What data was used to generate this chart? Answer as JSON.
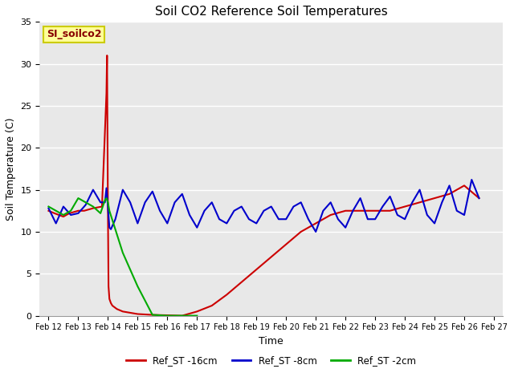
{
  "title": "Soil CO2 Reference Soil Temperatures",
  "xlabel": "Time",
  "ylabel": "Soil Temperature (C)",
  "ylim": [
    0,
    35
  ],
  "fig_bg_color": "#ffffff",
  "plot_bg_color": "#e8e8e8",
  "label_box_text": "SI_soilco2",
  "label_box_color": "#ffff99",
  "label_box_border": "#cccc00",
  "label_text_color": "#880000",
  "grid_color": "#ffffff",
  "legend_labels": [
    "Ref_ST -16cm",
    "Ref_ST -8cm",
    "Ref_ST -2cm"
  ],
  "legend_colors": [
    "#cc0000",
    "#0000cc",
    "#00aa00"
  ],
  "xtick_labels": [
    "Feb 12",
    "Feb 13",
    "Feb 14",
    "Feb 15",
    "Feb 16",
    "Feb 17",
    "Feb 18",
    "Feb 19",
    "Feb 20",
    "Feb 21",
    "Feb 22",
    "Feb 23",
    "Feb 24",
    "Feb 25",
    "Feb 26",
    "Feb 27"
  ],
  "xtick_positions": [
    0,
    1,
    2,
    3,
    4,
    5,
    6,
    7,
    8,
    9,
    10,
    11,
    12,
    13,
    14,
    15
  ],
  "ytick_positions": [
    0,
    5,
    10,
    15,
    20,
    25,
    30,
    35
  ],
  "series_red_x": [
    0,
    0.2,
    0.5,
    0.7,
    1.0,
    1.2,
    1.5,
    1.8,
    1.95,
    1.97,
    2.0,
    2.02,
    2.05,
    2.1,
    2.15,
    2.3,
    2.5,
    3.0,
    3.5,
    4.0,
    4.5,
    5.0,
    5.5,
    6.0,
    6.5,
    7.0,
    7.5,
    8.0,
    8.5,
    9.0,
    9.5,
    10.0,
    10.5,
    11.0,
    11.5,
    12.0,
    12.5,
    13.0,
    13.5,
    14.0,
    14.5
  ],
  "series_red_y": [
    12.5,
    12.2,
    11.8,
    12.2,
    12.5,
    12.5,
    12.8,
    13.0,
    26.5,
    31.0,
    12.5,
    3.5,
    2.0,
    1.5,
    1.2,
    0.8,
    0.5,
    0.2,
    0.1,
    0.05,
    0.0,
    0.5,
    1.2,
    2.5,
    4.0,
    5.5,
    7.0,
    8.5,
    10.0,
    11.0,
    12.0,
    12.5,
    12.5,
    12.5,
    12.5,
    13.0,
    13.5,
    14.0,
    14.5,
    15.5,
    14.0
  ],
  "series_blue_x": [
    0,
    0.25,
    0.5,
    0.75,
    1.0,
    1.25,
    1.5,
    1.75,
    1.9,
    1.95,
    2.0,
    2.05,
    2.1,
    2.25,
    2.5,
    2.75,
    3.0,
    3.25,
    3.5,
    3.75,
    4.0,
    4.25,
    4.5,
    4.75,
    5.0,
    5.25,
    5.5,
    5.75,
    6.0,
    6.25,
    6.5,
    6.75,
    7.0,
    7.25,
    7.5,
    7.75,
    8.0,
    8.25,
    8.5,
    8.75,
    9.0,
    9.25,
    9.5,
    9.75,
    10.0,
    10.25,
    10.5,
    10.75,
    11.0,
    11.25,
    11.5,
    11.75,
    12.0,
    12.25,
    12.5,
    12.75,
    13.0,
    13.25,
    13.5,
    13.75,
    14.0,
    14.25,
    14.5
  ],
  "series_blue_y": [
    12.8,
    11.0,
    13.0,
    12.0,
    12.2,
    13.2,
    15.0,
    13.5,
    13.5,
    15.2,
    13.0,
    10.5,
    10.3,
    11.5,
    15.0,
    13.5,
    11.0,
    13.5,
    14.8,
    12.5,
    11.0,
    13.5,
    14.5,
    12.0,
    10.5,
    12.5,
    13.5,
    11.5,
    11.0,
    12.5,
    13.0,
    11.5,
    11.0,
    12.5,
    13.0,
    11.5,
    11.5,
    13.0,
    13.5,
    11.5,
    10.0,
    12.5,
    13.5,
    11.5,
    10.5,
    12.5,
    14.0,
    11.5,
    11.5,
    13.0,
    14.2,
    12.0,
    11.5,
    13.5,
    15.0,
    12.0,
    11.0,
    13.5,
    15.5,
    12.5,
    12.0,
    16.2,
    14.0
  ],
  "series_green_x": [
    0,
    0.25,
    0.5,
    0.75,
    1.0,
    1.25,
    1.5,
    1.75,
    1.9,
    1.95,
    2.0,
    2.05,
    2.5,
    3.0,
    3.5,
    4.0,
    4.5,
    5.0
  ],
  "series_green_y": [
    13.0,
    12.5,
    12.0,
    12.5,
    14.0,
    13.5,
    13.0,
    12.2,
    13.8,
    14.0,
    13.5,
    12.5,
    7.5,
    3.5,
    0.1,
    0.0,
    0.0,
    0.0
  ]
}
